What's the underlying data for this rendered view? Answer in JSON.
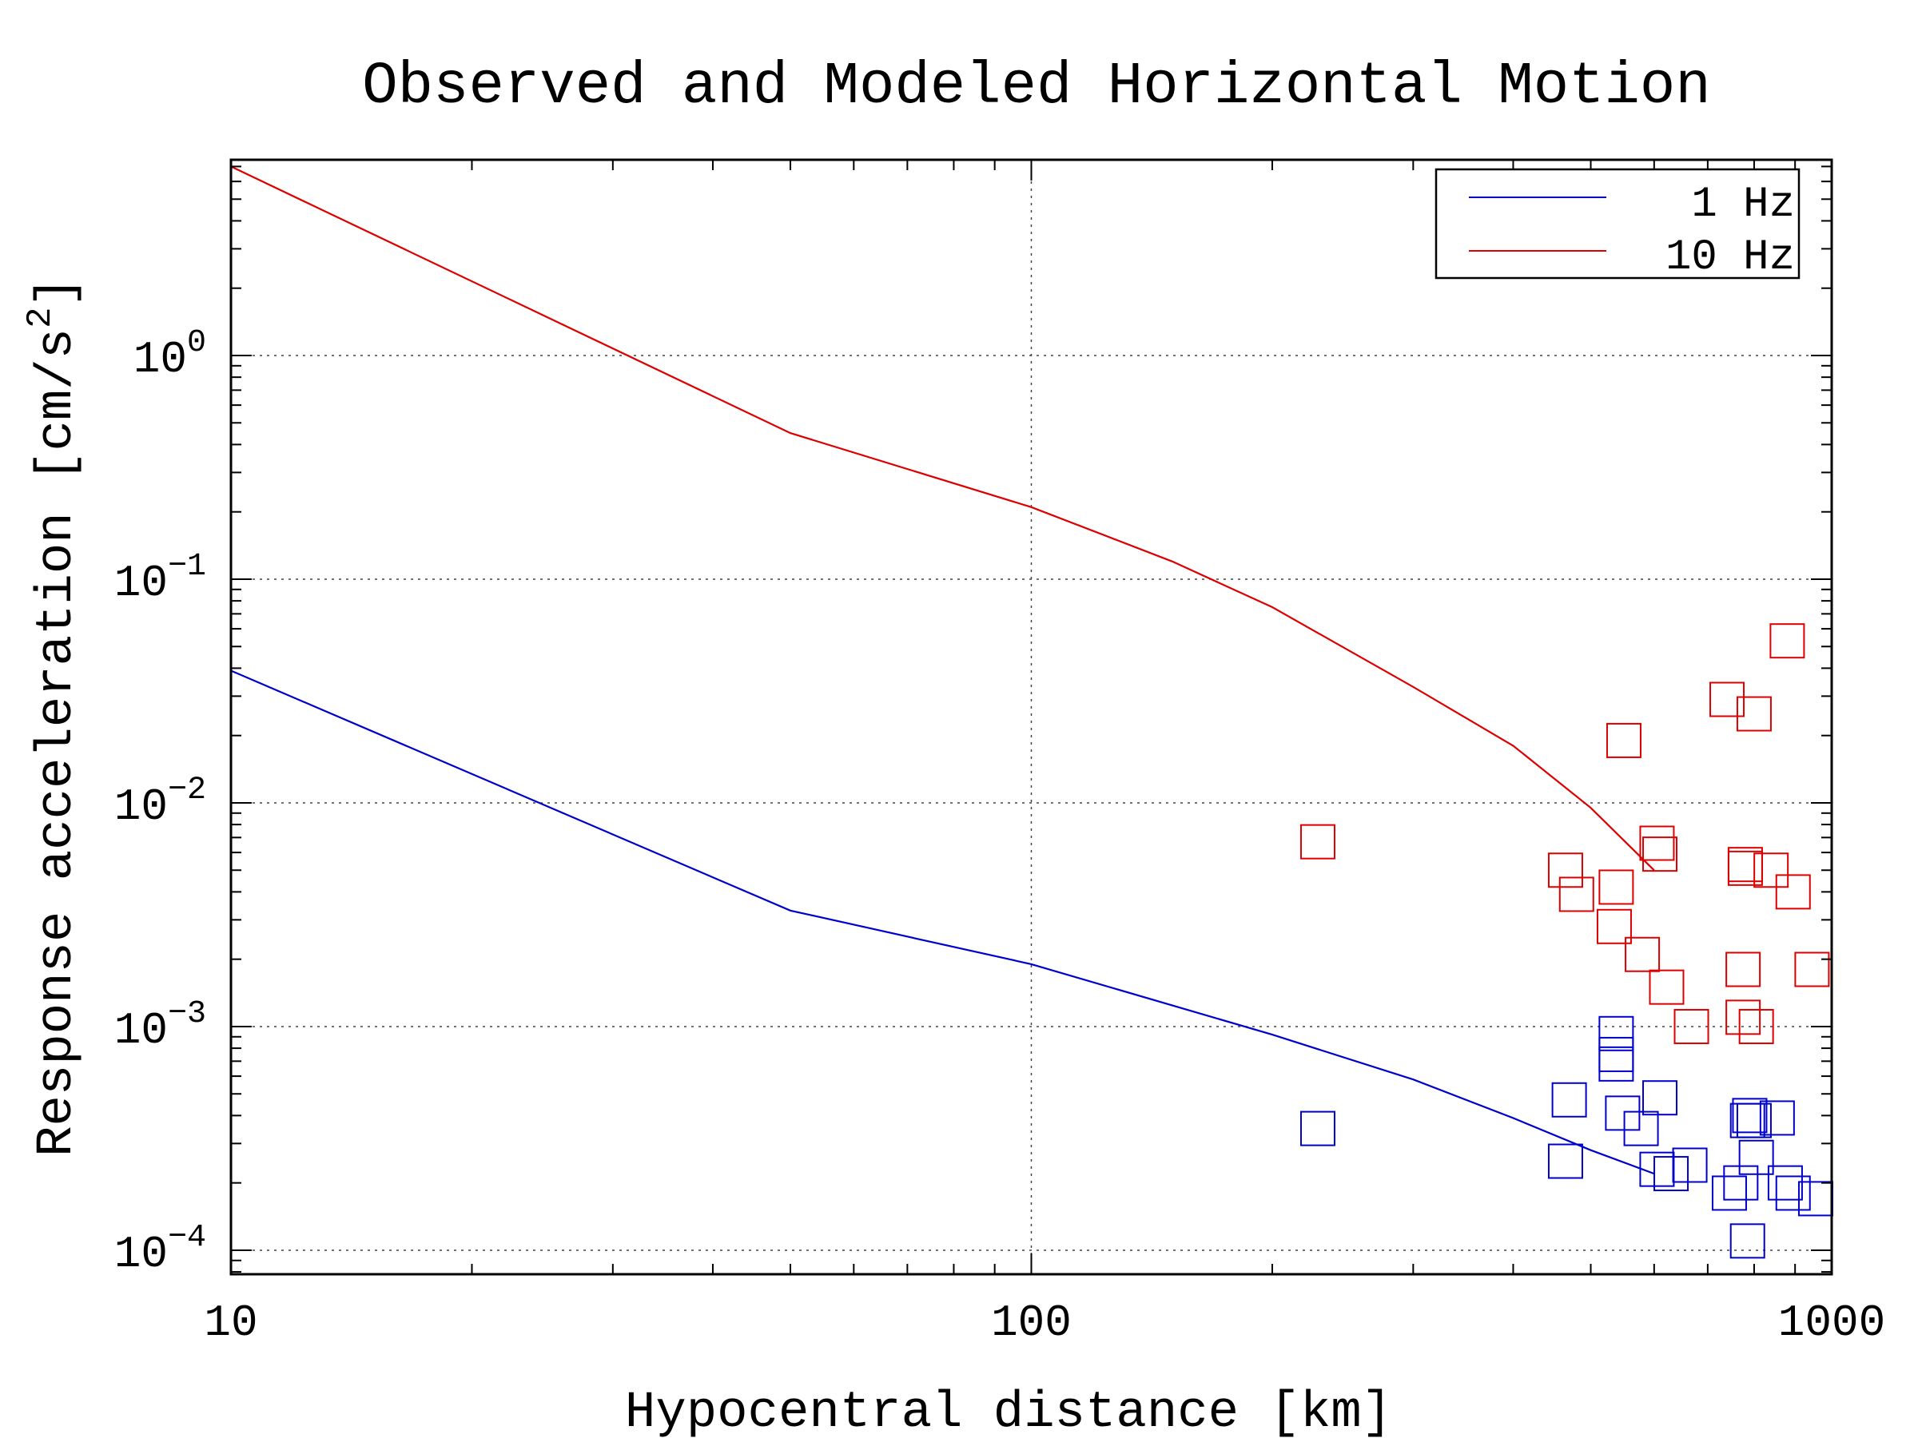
{
  "chart_data": {
    "type": "scatter",
    "title": "Observed and Modeled Horizontal Motion",
    "xlabel": "Hypocentral distance [km]",
    "ylabel_main": "Response acceleration [cm/s",
    "ylabel_sup": "2",
    "ylabel_close": "]",
    "xscale": "log",
    "yscale": "log",
    "xlim": [
      10,
      1000
    ],
    "ylim": [
      7.81e-05,
      7.5
    ],
    "grid": true,
    "legend_position": "top-right",
    "x_ticks": [
      {
        "value": 10,
        "label": "10"
      },
      {
        "value": 100,
        "label": "100"
      },
      {
        "value": 1000,
        "label": "1000"
      }
    ],
    "y_ticks": [
      {
        "value": 1,
        "base": "10",
        "exp": "0"
      },
      {
        "value": 0.1,
        "base": "10",
        "exp": "−1"
      },
      {
        "value": 0.01,
        "base": "10",
        "exp": "−2"
      },
      {
        "value": 0.001,
        "base": "10",
        "exp": "−3"
      },
      {
        "value": 0.0001,
        "base": "10",
        "exp": "−4"
      }
    ],
    "series": [
      {
        "name": "1 Hz",
        "color": "#0000cc",
        "model": {
          "x": [
            10,
            50,
            100,
            200,
            300,
            400,
            500,
            600
          ],
          "y": [
            0.039,
            0.0033,
            0.0019,
            0.00092,
            0.00058,
            0.00039,
            0.00028,
            0.00022
          ]
        },
        "observed": {
          "x": [
            228,
            465,
            470,
            538,
            538,
            538,
            548,
            578,
            605,
            610,
            630,
            665,
            745,
            770,
            785,
            785,
            790,
            800,
            805,
            855,
            875,
            895,
            955
          ],
          "y": [
            0.00035,
            0.00025,
            0.00047,
            0.00093,
            0.00075,
            0.00068,
            0.00041,
            0.00035,
            0.00023,
            0.00048,
            0.00022,
            0.00024,
            0.00018,
            0.0002,
            0.00011,
            0.00038,
            0.0004,
            0.00038,
            0.00026,
            0.00039,
            0.0002,
            0.00018,
            0.00017
          ]
        }
      },
      {
        "name": "10 Hz",
        "color": "#dd0000",
        "model": {
          "x": [
            10,
            50,
            100,
            150,
            200,
            300,
            400,
            500,
            600
          ],
          "y": [
            7.0,
            0.45,
            0.21,
            0.12,
            0.075,
            0.033,
            0.018,
            0.0095,
            0.005
          ]
        },
        "observed": {
          "x": [
            228,
            465,
            480,
            535,
            538,
            550,
            580,
            605,
            610,
            622,
            668,
            740,
            775,
            775,
            780,
            780,
            800,
            805,
            840,
            880,
            895,
            945
          ],
          "y": [
            0.0067,
            0.005,
            0.0039,
            0.0028,
            0.0042,
            0.019,
            0.0021,
            0.0066,
            0.0059,
            0.0015,
            0.001,
            0.029,
            0.0018,
            0.0011,
            0.0053,
            0.0051,
            0.025,
            0.001,
            0.005,
            0.053,
            0.004,
            0.0018
          ]
        }
      }
    ]
  }
}
